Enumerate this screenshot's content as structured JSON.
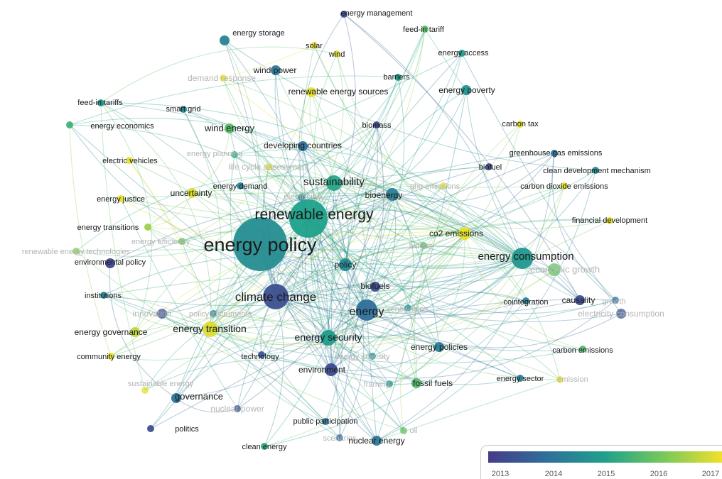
{
  "chart_data": {
    "type": "network",
    "color_legend": {
      "ticks": [
        "2013",
        "2014",
        "2015",
        "2016",
        "2017"
      ],
      "colors": [
        "#453c8a",
        "#2f6f9a",
        "#1fa18b",
        "#78c95a",
        "#f2e12a"
      ]
    },
    "nodes": [
      {
        "label": "energy policy",
        "weight": 10,
        "year": 2014.6
      },
      {
        "label": "renewable energy",
        "weight": 8,
        "year": 2015.0
      },
      {
        "label": "climate change",
        "weight": 6,
        "year": 2013.4
      },
      {
        "label": "energy",
        "weight": 5,
        "year": 2014.0
      },
      {
        "label": "energy consumption",
        "weight": 5,
        "year": 2014.8
      },
      {
        "label": "sustainability",
        "weight": 4,
        "year": 2015.1
      },
      {
        "label": "energy transition",
        "weight": 4,
        "year": 2016.8
      },
      {
        "label": "energy security",
        "weight": 4,
        "year": 2014.9
      },
      {
        "label": "bioenergy",
        "weight": 3,
        "year": 2014.3
      },
      {
        "label": "co2 emissions",
        "weight": 3,
        "year": 2016.9
      },
      {
        "label": "policy",
        "weight": 3,
        "year": 2014.5
      },
      {
        "label": "environment",
        "weight": 3,
        "year": 2013.3
      },
      {
        "label": "economic growth",
        "weight": 3,
        "year": 2015.8
      },
      {
        "label": "governance",
        "weight": 2,
        "year": 2014.1
      },
      {
        "label": "energy governance",
        "weight": 2,
        "year": 2016.6
      },
      {
        "label": "environmental policy",
        "weight": 2,
        "year": 2013.2
      },
      {
        "label": "wind energy",
        "weight": 2,
        "year": 2015.7
      },
      {
        "label": "developing countries",
        "weight": 2,
        "year": 2014.0
      },
      {
        "label": "energy poverty",
        "weight": 2,
        "year": 2014.7
      },
      {
        "label": "renewable energy sources",
        "weight": 2,
        "year": 2016.9
      },
      {
        "label": "wind power",
        "weight": 2,
        "year": 2014.2
      },
      {
        "label": "energy storage",
        "weight": 2,
        "year": 2014.4
      },
      {
        "label": "biofuels",
        "weight": 2,
        "year": 2013.3
      },
      {
        "label": "fossil fuels",
        "weight": 2,
        "year": 2015.6
      },
      {
        "label": "energy policies",
        "weight": 2,
        "year": 2014.3
      },
      {
        "label": "nuclear energy",
        "weight": 2,
        "year": 2014.2
      },
      {
        "label": "uncertainty",
        "weight": 2,
        "year": 2016.8
      },
      {
        "label": "causality",
        "weight": 2,
        "year": 2013.4
      },
      {
        "label": "electricity consumption",
        "weight": 2,
        "year": 2013.5
      },
      {
        "label": "innovation",
        "weight": 2,
        "year": 2013.4
      },
      {
        "label": "energy justice",
        "weight": 1,
        "year": 2016.9
      },
      {
        "label": "energy transitions",
        "weight": 1,
        "year": 2016.3
      },
      {
        "label": "renewable energy technologies",
        "weight": 1,
        "year": 2016.1
      },
      {
        "label": "energy economics",
        "weight": 1,
        "year": 2015.4
      },
      {
        "label": "feed-in tariffs",
        "weight": 1,
        "year": 2014.7
      },
      {
        "label": "smart grid",
        "weight": 1,
        "year": 2014.5
      },
      {
        "label": "electric vehicles",
        "weight": 1,
        "year": 2016.9
      },
      {
        "label": "energy planning",
        "weight": 1,
        "year": 2015.2
      },
      {
        "label": "life cycle assessment",
        "weight": 1,
        "year": 2016.9
      },
      {
        "label": "energy demand",
        "weight": 1,
        "year": 2014.4
      },
      {
        "label": "electricity",
        "weight": 1,
        "year": 2014.3
      },
      {
        "label": "demand response",
        "weight": 1,
        "year": 2016.9
      },
      {
        "label": "solar",
        "weight": 1,
        "year": 2016.9
      },
      {
        "label": "wind",
        "weight": 1,
        "year": 2016.8
      },
      {
        "label": "energy management",
        "weight": 1,
        "year": 2013.4
      },
      {
        "label": "feed-in tariff",
        "weight": 1,
        "year": 2015.7
      },
      {
        "label": "energy access",
        "weight": 1,
        "year": 2014.9
      },
      {
        "label": "barriers",
        "weight": 1,
        "year": 2015.0
      },
      {
        "label": "biomass",
        "weight": 1,
        "year": 2013.3
      },
      {
        "label": "carbon tax",
        "weight": 1,
        "year": 2016.9
      },
      {
        "label": "greenhouse gas emissions",
        "weight": 1,
        "year": 2014.1
      },
      {
        "label": "biofuel",
        "weight": 1,
        "year": 2013.4
      },
      {
        "label": "clean development mechanism",
        "weight": 1,
        "year": 2014.6
      },
      {
        "label": "ghg emissions",
        "weight": 1,
        "year": 2016.9
      },
      {
        "label": "carbon dioxide emissions",
        "weight": 1,
        "year": 2016.9
      },
      {
        "label": "financial development",
        "weight": 1,
        "year": 2016.9
      },
      {
        "label": "biogas",
        "weight": 1,
        "year": 2015.6
      },
      {
        "label": "energy efficiency",
        "weight": 1,
        "year": 2015.8
      },
      {
        "label": "renewables",
        "weight": 1,
        "year": 2014.7
      },
      {
        "label": "energy intensity",
        "weight": 1,
        "year": 2014.6
      },
      {
        "label": "cointegration",
        "weight": 1,
        "year": 2014.4
      },
      {
        "label": "growth",
        "weight": 1,
        "year": 2014.0
      },
      {
        "label": "carbon emissions",
        "weight": 1,
        "year": 2015.6
      },
      {
        "label": "energy sector",
        "weight": 1,
        "year": 2014.3
      },
      {
        "label": "emission",
        "weight": 1,
        "year": 2016.9
      },
      {
        "label": "technology",
        "weight": 1,
        "year": 2013.5
      },
      {
        "label": "framing",
        "weight": 1,
        "year": 2014.8
      },
      {
        "label": "institutions",
        "weight": 1,
        "year": 2014.4
      },
      {
        "label": "community energy",
        "weight": 1,
        "year": 2016.9
      },
      {
        "label": "sustainable energy",
        "weight": 1,
        "year": 2016.9
      },
      {
        "label": "nuclear power",
        "weight": 1,
        "year": 2013.4
      },
      {
        "label": "politics",
        "weight": 1,
        "year": 2013.4
      },
      {
        "label": "public participation",
        "weight": 1,
        "year": 2014.2
      },
      {
        "label": "clean energy",
        "weight": 1,
        "year": 2015.2
      },
      {
        "label": "scenarios",
        "weight": 1,
        "year": 2013.8
      },
      {
        "label": "policy instruments",
        "weight": 1,
        "year": 2014.4
      },
      {
        "label": "oil",
        "weight": 1,
        "year": 2015.8
      }
    ]
  }
}
